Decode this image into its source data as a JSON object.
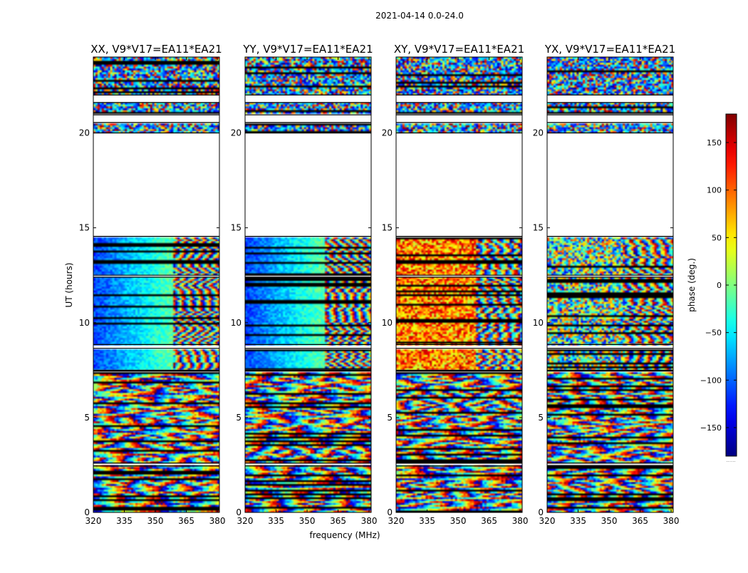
{
  "figure": {
    "suptitle": "2021-04-14 0.0-24.0",
    "xlabel": "frequency (MHz)",
    "ylabel": "UT (hours)",
    "colorbar_label": "phase (deg.)",
    "colorbar_dots": "......"
  },
  "chart_data": [
    {
      "type": "heatmap",
      "title": "XX, V9*V17=EA11*EA21",
      "xlim": [
        320,
        381
      ],
      "ylim": [
        0,
        24
      ],
      "xticks": [
        "320",
        "335",
        "350",
        "365",
        "380"
      ],
      "yticks": [
        "0",
        "5",
        "10",
        "15",
        "20"
      ],
      "gaps": [
        [
          2.45,
          2.6
        ],
        [
          7.45,
          7.5
        ],
        [
          8.65,
          8.85
        ],
        [
          12.4,
          12.5
        ],
        [
          14.55,
          20.0
        ],
        [
          20.55,
          20.95
        ],
        [
          21.6,
          22.0
        ]
      ],
      "regime": [
        [
          0,
          7.4,
          "wrap"
        ],
        [
          7.5,
          8.6,
          "cold"
        ],
        [
          8.8,
          14.5,
          "cold"
        ],
        [
          20.0,
          24.0,
          "mixed"
        ]
      ]
    },
    {
      "type": "heatmap",
      "title": "YY, V9*V17=EA11*EA21",
      "xlim": [
        320,
        381
      ],
      "ylim": [
        0,
        24
      ],
      "xticks": [
        "320",
        "335",
        "350",
        "365",
        "380"
      ],
      "yticks": [
        "0",
        "5",
        "10",
        "15",
        "20"
      ],
      "gaps": [
        [
          2.45,
          2.6
        ],
        [
          7.45,
          7.5
        ],
        [
          8.65,
          8.85
        ],
        [
          12.4,
          12.5
        ],
        [
          14.55,
          20.0
        ],
        [
          20.55,
          20.95
        ],
        [
          21.6,
          22.0
        ]
      ],
      "regime": [
        [
          0,
          7.4,
          "wrap"
        ],
        [
          7.5,
          8.6,
          "cold"
        ],
        [
          8.8,
          14.5,
          "cold"
        ],
        [
          20.0,
          24.0,
          "mixed"
        ]
      ]
    },
    {
      "type": "heatmap",
      "title": "XY, V9*V17=EA11*EA21",
      "xlim": [
        320,
        381
      ],
      "ylim": [
        0,
        24
      ],
      "xticks": [
        "320",
        "335",
        "350",
        "365",
        "380"
      ],
      "yticks": [
        "0",
        "5",
        "10",
        "15",
        "20"
      ],
      "gaps": [
        [
          2.45,
          2.6
        ],
        [
          7.45,
          7.5
        ],
        [
          8.65,
          8.85
        ],
        [
          12.4,
          12.5
        ],
        [
          14.55,
          20.0
        ],
        [
          20.55,
          20.95
        ],
        [
          21.6,
          22.0
        ]
      ],
      "regime": [
        [
          0,
          7.4,
          "wrap"
        ],
        [
          7.5,
          8.6,
          "warm"
        ],
        [
          8.8,
          14.5,
          "warm"
        ],
        [
          20.0,
          24.0,
          "mixed"
        ]
      ]
    },
    {
      "type": "heatmap",
      "title": "YX, V9*V17=EA11*EA21",
      "xlim": [
        320,
        381
      ],
      "ylim": [
        0,
        24
      ],
      "xticks": [
        "320",
        "335",
        "350",
        "365",
        "380"
      ],
      "yticks": [
        "0",
        "5",
        "10",
        "15",
        "20"
      ],
      "gaps": [
        [
          2.45,
          2.6
        ],
        [
          7.45,
          7.5
        ],
        [
          8.65,
          8.85
        ],
        [
          12.4,
          12.5
        ],
        [
          14.55,
          20.0
        ],
        [
          20.55,
          20.95
        ],
        [
          21.6,
          22.0
        ]
      ],
      "regime": [
        [
          0,
          7.4,
          "wrap"
        ],
        [
          7.5,
          8.6,
          "noise"
        ],
        [
          8.8,
          14.5,
          "noise"
        ],
        [
          20.0,
          24.0,
          "mixed"
        ]
      ]
    }
  ],
  "colorbar": {
    "colormap": "jet",
    "range": [
      -180,
      180
    ],
    "ticks": [
      "150",
      "100",
      "50",
      "0",
      "−50",
      "−100",
      "−150"
    ],
    "tick_values": [
      150,
      100,
      50,
      0,
      -50,
      -100,
      -150
    ]
  }
}
